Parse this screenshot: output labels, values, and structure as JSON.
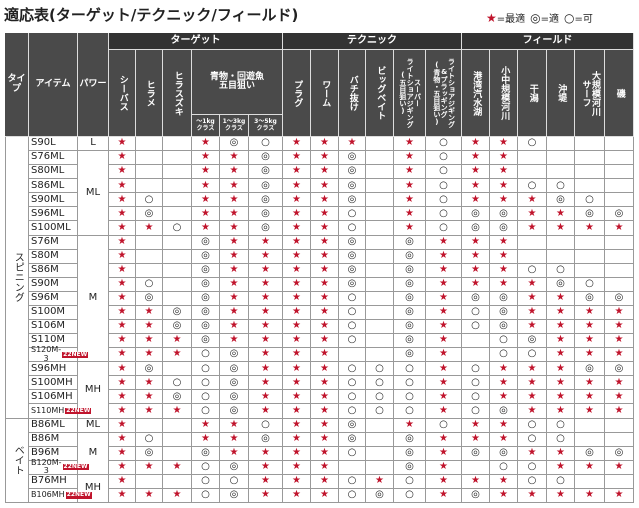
{
  "title": "適応表(ターゲット/テクニック/フィールド)",
  "legend": [
    {
      "symbol": "★",
      "label": "=最適"
    },
    {
      "symbol": "◎",
      "label": "=適"
    },
    {
      "symbol": "○",
      "label": "=可"
    }
  ],
  "header": {
    "type": "タイプ",
    "item": "アイテム",
    "power": "パワー",
    "groups": [
      {
        "label": "ターゲット",
        "columns": [
          {
            "label": "シーバス"
          },
          {
            "label": "ヒラメ"
          },
          {
            "label": "ヒラスズキ"
          },
          {
            "label": "青物・回遊魚\n五目狙い",
            "sub": [
              "～1kg\nクラス",
              "1～3kg\nクラス",
              "3～5kg\nクラス"
            ]
          }
        ]
      },
      {
        "label": "テクニック",
        "columns": [
          {
            "label": "プラグ"
          },
          {
            "label": "ワーム"
          },
          {
            "label": "バチ抜け"
          },
          {
            "label": "ビッグベイト"
          },
          {
            "label": "スーパー\nライトショアジギング\n(五目狙い)"
          },
          {
            "label": "ライトショアジギング\n&プラッギング\n(青物・五目狙い)"
          }
        ]
      },
      {
        "label": "フィールド",
        "columns": [
          {
            "label": "港湾汽水湖"
          },
          {
            "label": "小中規模河川"
          },
          {
            "label": "干潟"
          },
          {
            "label": "沖堤"
          },
          {
            "label": "大規模河川\nサーフ"
          },
          {
            "label": "磯"
          }
        ]
      }
    ]
  },
  "table": {
    "sections": [
      {
        "type": "スピニング",
        "powers": [
          {
            "power": "L",
            "rows": [
              {
                "item": "S90L",
                "cells": [
                  "★",
                  null,
                  null,
                  "★",
                  "◎",
                  "○",
                  "★",
                  "★",
                  "★",
                  null,
                  "★",
                  "○",
                  "★",
                  "★",
                  "○",
                  null,
                  null,
                  null
                ]
              }
            ]
          },
          {
            "power": "ML",
            "rows": [
              {
                "item": "S76ML",
                "cells": [
                  "★",
                  null,
                  null,
                  "★",
                  "★",
                  "◎",
                  "★",
                  "★",
                  "◎",
                  null,
                  "★",
                  "○",
                  "★",
                  "★",
                  null,
                  null,
                  null,
                  null
                ]
              },
              {
                "item": "S80ML",
                "cells": [
                  "★",
                  null,
                  null,
                  "★",
                  "★",
                  "◎",
                  "★",
                  "★",
                  "◎",
                  null,
                  "★",
                  "○",
                  "★",
                  "★",
                  null,
                  null,
                  null,
                  null
                ]
              },
              {
                "item": "S86ML",
                "cells": [
                  "★",
                  null,
                  null,
                  "★",
                  "★",
                  "◎",
                  "★",
                  "★",
                  "◎",
                  null,
                  "★",
                  "○",
                  "★",
                  "★",
                  "○",
                  "○",
                  null,
                  null
                ]
              },
              {
                "item": "S90ML",
                "cells": [
                  "★",
                  "○",
                  null,
                  "★",
                  "★",
                  "◎",
                  "★",
                  "★",
                  "◎",
                  null,
                  "★",
                  "○",
                  "★",
                  "★",
                  "★",
                  "◎",
                  "○",
                  null
                ]
              },
              {
                "item": "S96ML",
                "cells": [
                  "★",
                  "◎",
                  null,
                  "★",
                  "★",
                  "◎",
                  "★",
                  "★",
                  "○",
                  null,
                  "★",
                  "○",
                  "◎",
                  "◎",
                  "★",
                  "★",
                  "◎",
                  "◎"
                ]
              },
              {
                "item": "S100ML",
                "cells": [
                  "★",
                  "★",
                  "○",
                  "★",
                  "★",
                  "◎",
                  "★",
                  "★",
                  "○",
                  null,
                  "★",
                  "○",
                  "◎",
                  "◎",
                  "★",
                  "★",
                  "★",
                  "★"
                ]
              }
            ]
          },
          {
            "power": "M",
            "rows": [
              {
                "item": "S76M",
                "cells": [
                  "★",
                  null,
                  null,
                  "◎",
                  "★",
                  "★",
                  "★",
                  "★",
                  "◎",
                  null,
                  "◎",
                  "★",
                  "★",
                  "★",
                  null,
                  null,
                  null,
                  null
                ]
              },
              {
                "item": "S80M",
                "cells": [
                  "★",
                  null,
                  null,
                  "◎",
                  "★",
                  "★",
                  "★",
                  "★",
                  "◎",
                  null,
                  "◎",
                  "★",
                  "★",
                  "★",
                  null,
                  null,
                  null,
                  null
                ]
              },
              {
                "item": "S86M",
                "cells": [
                  "★",
                  null,
                  null,
                  "◎",
                  "★",
                  "★",
                  "★",
                  "★",
                  "◎",
                  null,
                  "◎",
                  "★",
                  "★",
                  "★",
                  "○",
                  "○",
                  null,
                  null
                ]
              },
              {
                "item": "S90M",
                "cells": [
                  "★",
                  "○",
                  null,
                  "◎",
                  "★",
                  "★",
                  "★",
                  "★",
                  "◎",
                  null,
                  "◎",
                  "★",
                  "★",
                  "★",
                  "★",
                  "◎",
                  "○",
                  null
                ]
              },
              {
                "item": "S96M",
                "cells": [
                  "★",
                  "◎",
                  null,
                  "◎",
                  "★",
                  "★",
                  "★",
                  "★",
                  "○",
                  null,
                  "◎",
                  "★",
                  "◎",
                  "◎",
                  "★",
                  "★",
                  "◎",
                  "◎"
                ]
              },
              {
                "item": "S100M",
                "cells": [
                  "★",
                  "★",
                  "◎",
                  "◎",
                  "★",
                  "★",
                  "★",
                  "★",
                  "○",
                  null,
                  "◎",
                  "★",
                  "○",
                  "◎",
                  "★",
                  "★",
                  "★",
                  "★"
                ]
              },
              {
                "item": "S106M",
                "cells": [
                  "★",
                  "★",
                  "◎",
                  "◎",
                  "★",
                  "★",
                  "★",
                  "★",
                  "○",
                  null,
                  "◎",
                  "★",
                  "○",
                  "◎",
                  "★",
                  "★",
                  "★",
                  "★"
                ]
              },
              {
                "item": "S110M",
                "cells": [
                  "★",
                  "★",
                  "★",
                  "◎",
                  "★",
                  "★",
                  "★",
                  "★",
                  "○",
                  null,
                  "◎",
                  "★",
                  null,
                  "○",
                  "◎",
                  "★",
                  "★",
                  "★"
                ]
              },
              {
                "item": "S120M-3",
                "badge": "22NEW",
                "cells": [
                  "★",
                  "★",
                  "★",
                  "○",
                  "◎",
                  "★",
                  "★",
                  "★",
                  null,
                  null,
                  "◎",
                  "★",
                  null,
                  "○",
                  "○",
                  "★",
                  "★",
                  "★"
                ]
              }
            ]
          },
          {
            "power": "MH",
            "rows": [
              {
                "item": "S96MH",
                "cells": [
                  "★",
                  "◎",
                  null,
                  "○",
                  "◎",
                  "★",
                  "★",
                  "★",
                  "○",
                  "○",
                  "○",
                  "★",
                  "○",
                  "★",
                  "★",
                  "★",
                  "◎",
                  "◎"
                ]
              },
              {
                "item": "S100MH",
                "cells": [
                  "★",
                  "★",
                  "○",
                  "○",
                  "◎",
                  "★",
                  "★",
                  "★",
                  "○",
                  "○",
                  "○",
                  "★",
                  "○",
                  "★",
                  "★",
                  "★",
                  "★",
                  "★"
                ]
              },
              {
                "item": "S106MH",
                "cells": [
                  "★",
                  "★",
                  "◎",
                  "○",
                  "◎",
                  "★",
                  "★",
                  "★",
                  "○",
                  "○",
                  "○",
                  "★",
                  "○",
                  "★",
                  "★",
                  "★",
                  "★",
                  "★"
                ]
              },
              {
                "item": "S110MH",
                "badge": "22NEW",
                "cells": [
                  "★",
                  "★",
                  "★",
                  "○",
                  "◎",
                  "★",
                  "★",
                  "★",
                  "○",
                  "○",
                  "○",
                  "★",
                  "○",
                  "◎",
                  "★",
                  "★",
                  "★",
                  "★"
                ]
              }
            ]
          }
        ]
      },
      {
        "type": "ベイト",
        "powers": [
          {
            "power": "ML",
            "rows": [
              {
                "item": "B86ML",
                "cells": [
                  "★",
                  null,
                  null,
                  "★",
                  "★",
                  "○",
                  "★",
                  "★",
                  "◎",
                  null,
                  "★",
                  "○",
                  "★",
                  "★",
                  "○",
                  "○",
                  null,
                  null
                ]
              }
            ]
          },
          {
            "power": "M",
            "rows": [
              {
                "item": "B86M",
                "cells": [
                  "★",
                  "○",
                  null,
                  "★",
                  "★",
                  "◎",
                  "★",
                  "★",
                  "◎",
                  null,
                  "◎",
                  "★",
                  "★",
                  "★",
                  "○",
                  "○",
                  null,
                  null
                ]
              },
              {
                "item": "B96M",
                "cells": [
                  "★",
                  "◎",
                  null,
                  "◎",
                  "★",
                  "★",
                  "★",
                  "★",
                  "○",
                  null,
                  "◎",
                  "★",
                  "◎",
                  "◎",
                  "★",
                  "★",
                  "◎",
                  "◎"
                ]
              },
              {
                "item": "B120M-3",
                "badge": "22NEW",
                "cells": [
                  "★",
                  "★",
                  "★",
                  "○",
                  "◎",
                  "★",
                  "★",
                  "★",
                  null,
                  null,
                  "◎",
                  "★",
                  null,
                  "○",
                  "○",
                  "★",
                  "★",
                  "★"
                ]
              }
            ]
          },
          {
            "power": "MH",
            "rows": [
              {
                "item": "B76MH",
                "cells": [
                  "★",
                  null,
                  null,
                  "○",
                  "○",
                  "★",
                  "★",
                  "★",
                  "○",
                  "★",
                  "○",
                  "★",
                  "★",
                  "★",
                  "○",
                  "○",
                  null,
                  null
                ]
              },
              {
                "item": "B106MH",
                "badge": "22NEW",
                "cells": [
                  "★",
                  "★",
                  "★",
                  "○",
                  "◎",
                  "★",
                  "★",
                  "★",
                  "○",
                  "◎",
                  "○",
                  "★",
                  "◎",
                  "★",
                  "★",
                  "★",
                  "★",
                  "★"
                ]
              }
            ]
          }
        ]
      }
    ]
  }
}
